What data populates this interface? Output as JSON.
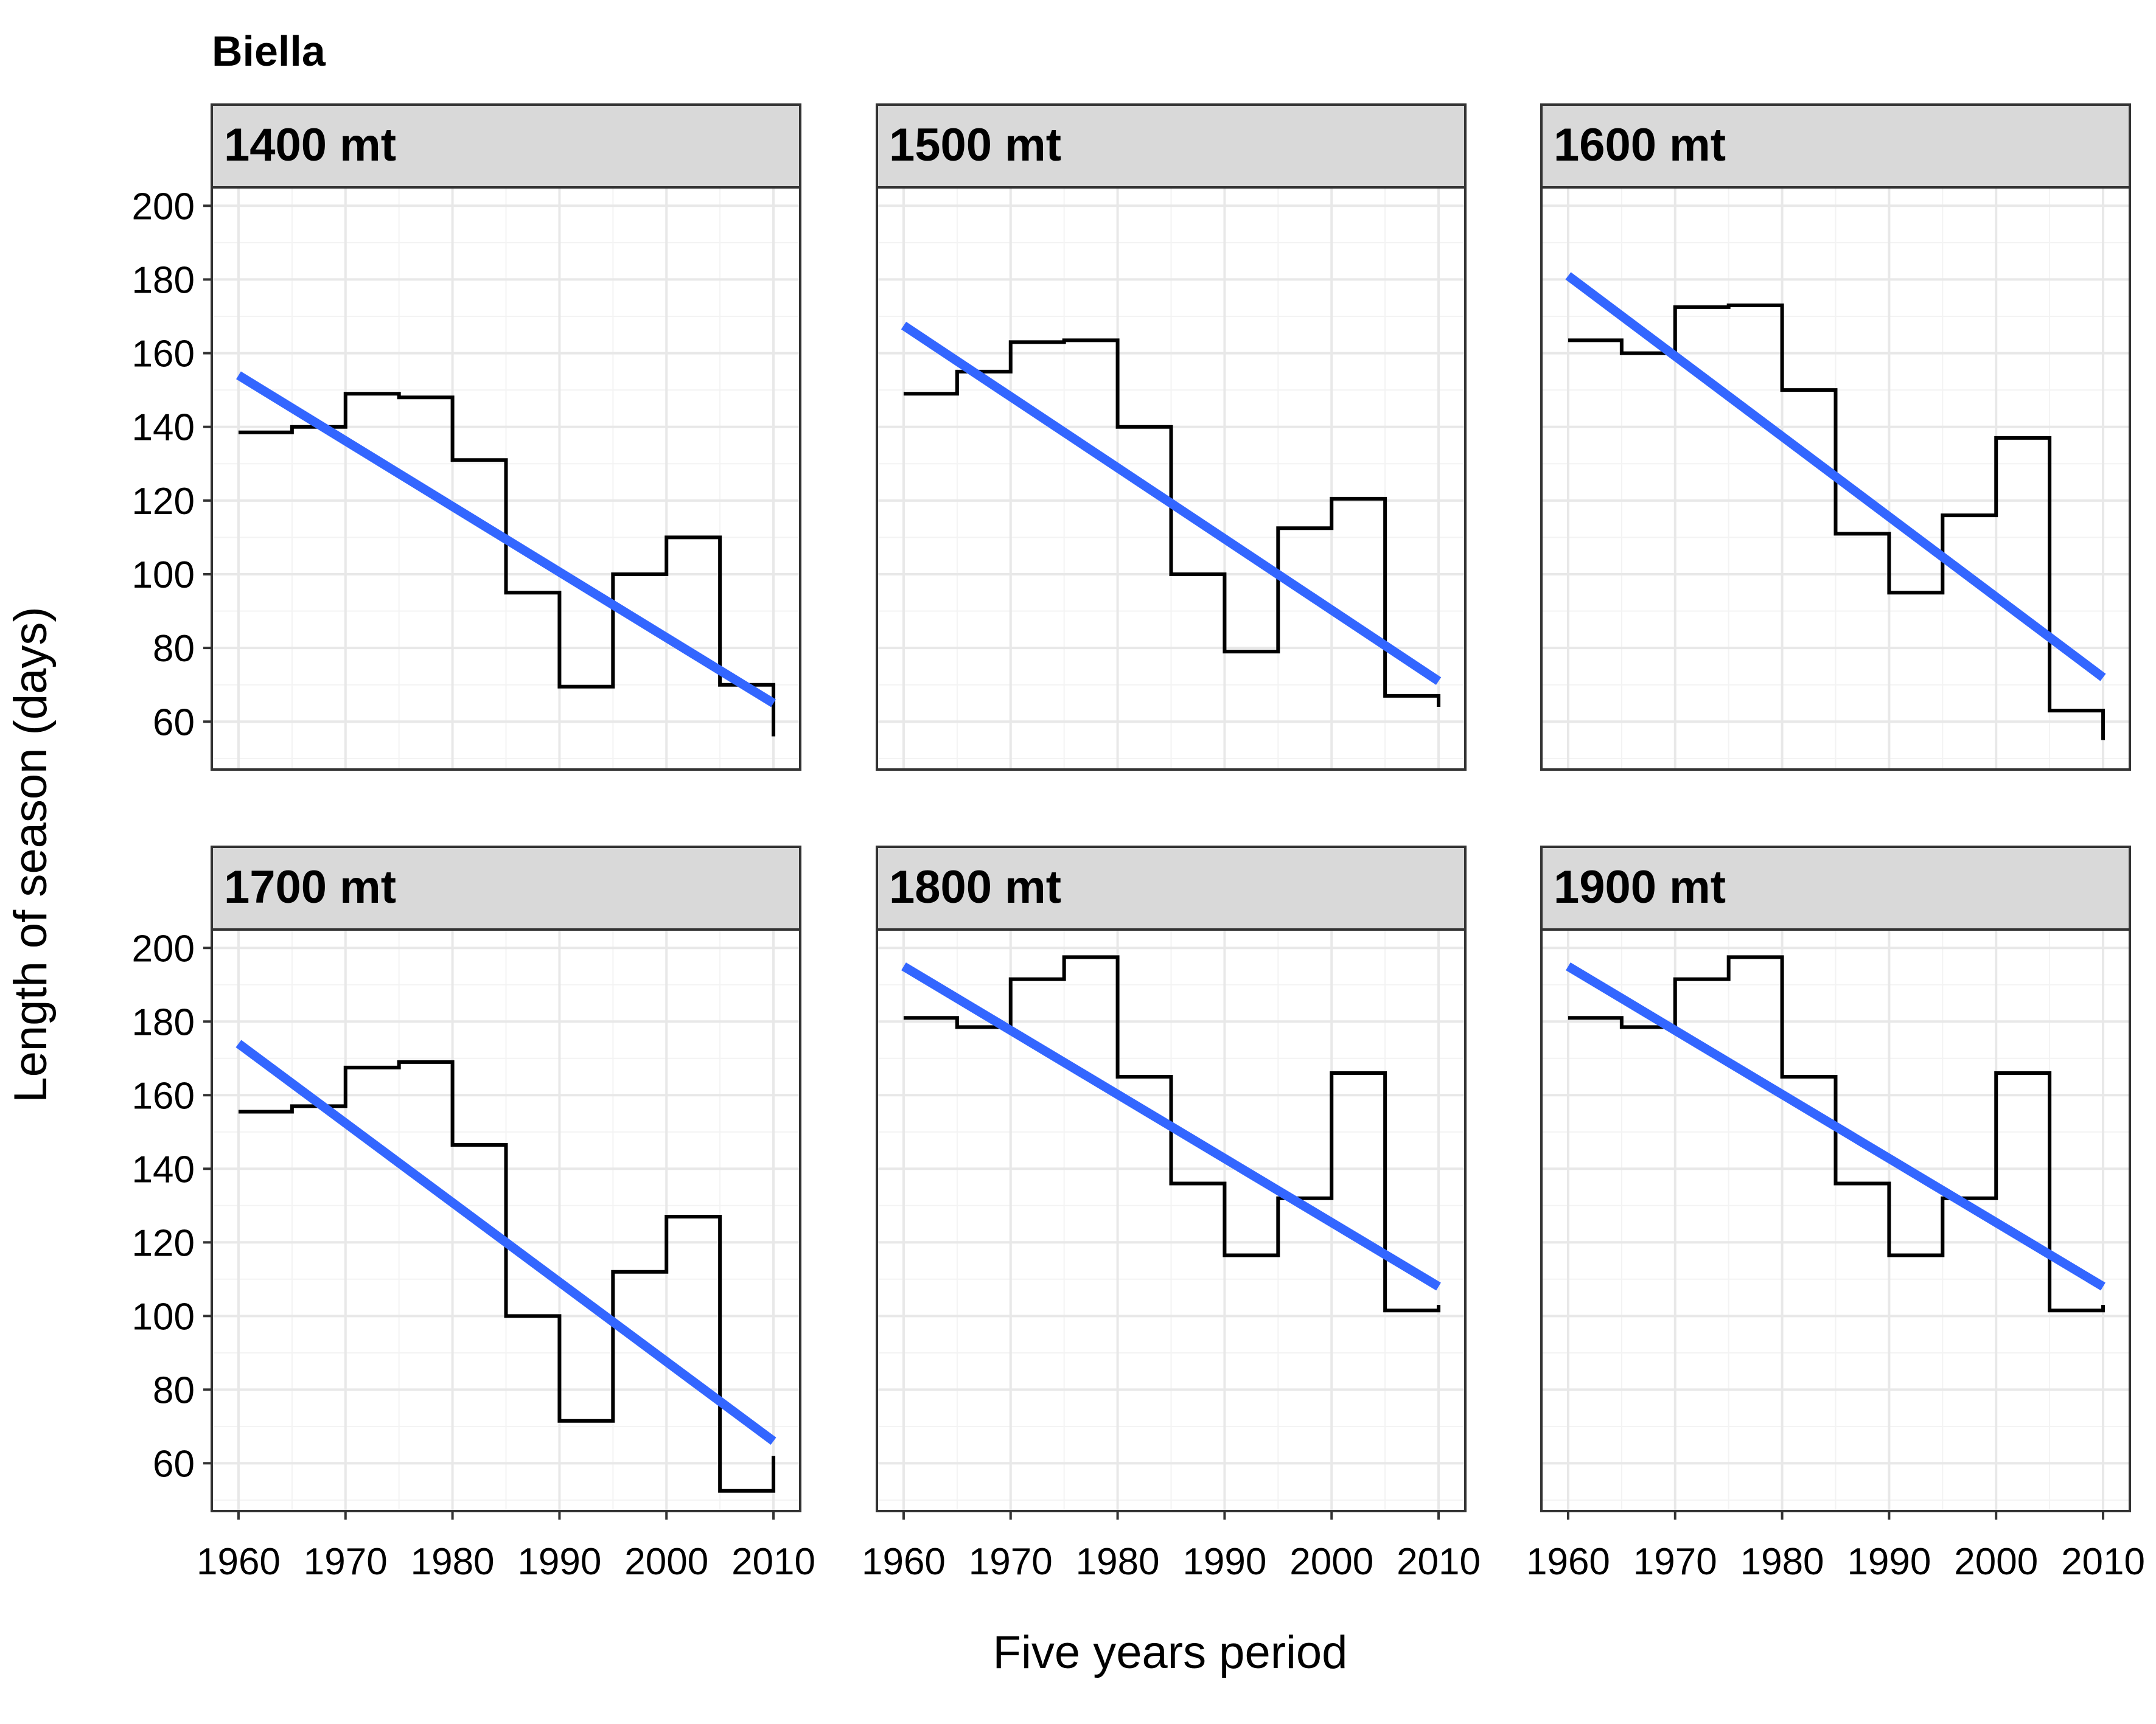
{
  "chart_data": {
    "type": "line",
    "title": "Biella",
    "xlabel": "Five years period",
    "ylabel": "Length of season (days)",
    "xlim": [
      1957.5,
      2012.5
    ],
    "ylim": [
      47,
      205
    ],
    "x_ticks": [
      1960,
      1970,
      1980,
      1990,
      2000,
      2010
    ],
    "y_ticks": [
      60,
      80,
      100,
      120,
      140,
      160,
      180,
      200
    ],
    "grid": true,
    "layout": "facet grid 2 rows x 3 columns, shared axes",
    "line_colors": {
      "step": "#000000",
      "trend": "#3366ff"
    },
    "periods": [
      1960,
      1965,
      1970,
      1975,
      1980,
      1985,
      1990,
      1995,
      2000,
      2005,
      2010
    ],
    "panels": [
      {
        "label": "1400 mt",
        "step_values": [
          138.5,
          140,
          149,
          148,
          131,
          95,
          69.5,
          100,
          110,
          70,
          56
        ],
        "trend": {
          "x": [
            1960,
            2010
          ],
          "y": [
            154,
            65
          ]
        }
      },
      {
        "label": "1500 mt",
        "step_values": [
          149,
          155,
          163,
          163.5,
          140,
          100,
          79,
          112.5,
          120.5,
          67,
          64
        ],
        "trend": {
          "x": [
            1960,
            2010
          ],
          "y": [
            167.5,
            71
          ]
        }
      },
      {
        "label": "1600 mt",
        "step_values": [
          163.5,
          160,
          172.5,
          173,
          150,
          111,
          95,
          116,
          137,
          63,
          55
        ],
        "trend": {
          "x": [
            1960,
            2010
          ],
          "y": [
            181,
            72
          ]
        }
      },
      {
        "label": "1700 mt",
        "step_values": [
          155.5,
          157,
          167.5,
          169,
          146.5,
          100,
          71.5,
          112,
          127,
          52.5,
          62
        ],
        "trend": {
          "x": [
            1960,
            2010
          ],
          "y": [
            174,
            66
          ]
        }
      },
      {
        "label": "1800 mt",
        "step_values": [
          181,
          178.5,
          191.5,
          197.5,
          165,
          136,
          116.5,
          132,
          166,
          101.5,
          103
        ],
        "trend": {
          "x": [
            1960,
            2010
          ],
          "y": [
            195,
            108
          ]
        }
      },
      {
        "label": "1900 mt",
        "step_values": [
          181,
          178.5,
          191.5,
          197.5,
          165,
          136,
          116.5,
          132,
          166,
          101.5,
          103
        ],
        "trend": {
          "x": [
            1960,
            2010
          ],
          "y": [
            195,
            108
          ]
        }
      }
    ]
  }
}
